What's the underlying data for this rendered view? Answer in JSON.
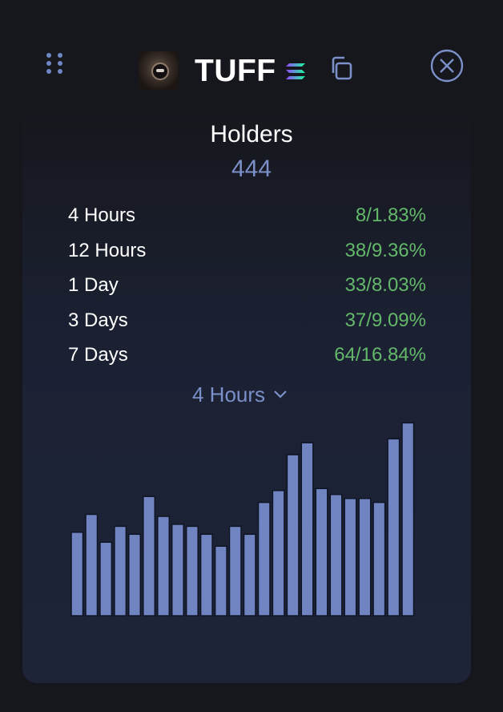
{
  "header": {
    "token_name": "TUFF",
    "icons": {
      "drag": "drag-handle-icon",
      "avatar": "token-avatar",
      "chain": "solana-icon",
      "copy": "copy-icon",
      "close": "close-icon"
    }
  },
  "colors": {
    "accent": "#7b90c8",
    "positive": "#63b86a",
    "bar": "#6f84c0",
    "background": "#16171d",
    "panel": "#1e2438"
  },
  "holders": {
    "title": "Holders",
    "count": "444",
    "rows": [
      {
        "label": "4 Hours",
        "value": "8/1.83%"
      },
      {
        "label": "12 Hours",
        "value": "38/9.36%"
      },
      {
        "label": "1 Day",
        "value": "33/8.03%"
      },
      {
        "label": "3 Days",
        "value": "37/9.09%"
      },
      {
        "label": "7 Days",
        "value": "64/16.84%"
      }
    ],
    "range_selector": "4 Hours"
  },
  "chart_data": {
    "type": "bar",
    "values": [
      42,
      51,
      37,
      45,
      41,
      60,
      50,
      46,
      45,
      41,
      35,
      45,
      41,
      57,
      63,
      81,
      87,
      64,
      61,
      59,
      59,
      57,
      89,
      97
    ],
    "ylim": [
      0,
      100
    ],
    "grid": false
  }
}
